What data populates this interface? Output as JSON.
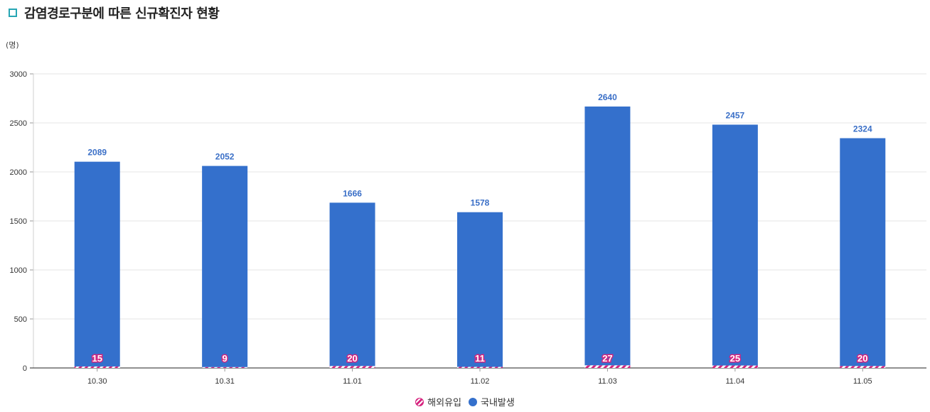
{
  "title": "감염경로구분에 따른 신규확진자 현황",
  "colors": {
    "title_marker": "#27a6b4",
    "domestic": "#3470cc",
    "overseas": "#d6247f",
    "value_label": "#3a6fc7"
  },
  "legend": {
    "overseas_label": "해외유입",
    "domestic_label": "국내발생"
  },
  "chart_data": {
    "type": "bar",
    "stacked": true,
    "unit_label": "(명)",
    "categories": [
      "10.30",
      "10.31",
      "11.01",
      "11.02",
      "11.03",
      "11.04",
      "11.05"
    ],
    "series": [
      {
        "name": "해외유입",
        "values": [
          15,
          9,
          20,
          11,
          27,
          25,
          20
        ]
      },
      {
        "name": "국내발생",
        "values": [
          2089,
          2052,
          1666,
          1578,
          2640,
          2457,
          2324
        ]
      }
    ],
    "ylim": [
      0,
      3000
    ],
    "yticks": [
      0,
      500,
      1000,
      1500,
      2000,
      2500,
      3000
    ],
    "grid": true,
    "legend_position": "bottom-center"
  }
}
